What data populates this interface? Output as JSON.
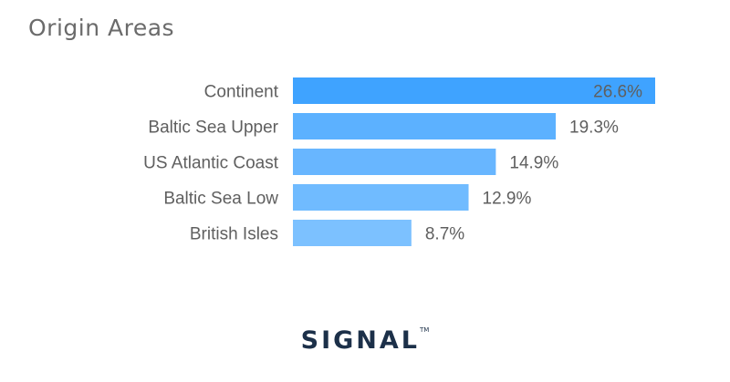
{
  "chart_data": {
    "type": "bar",
    "orientation": "horizontal",
    "title": "Origin Areas",
    "categories": [
      "Continent",
      "Baltic Sea Upper",
      "US Atlantic Coast",
      "Baltic Sea Low",
      "British Isles"
    ],
    "values": [
      26.6,
      19.3,
      14.9,
      12.9,
      8.7
    ],
    "value_labels": [
      "26.6%",
      "19.3%",
      "14.9%",
      "12.9%",
      "8.7%"
    ],
    "xlim": [
      0,
      26.6
    ],
    "grid": false,
    "colors": [
      "#3fa3ff",
      "#5cb1ff",
      "#68b6ff",
      "#70bbff",
      "#7cc1ff"
    ]
  },
  "brand": {
    "name": "SIGNAL",
    "tm": "TM"
  }
}
